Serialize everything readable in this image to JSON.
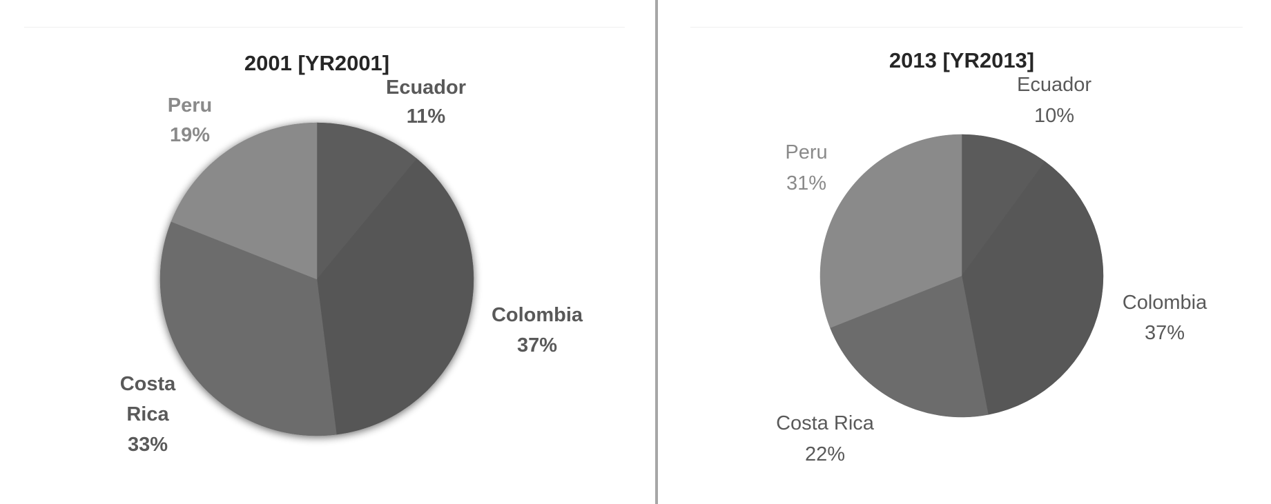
{
  "chart_data": [
    {
      "type": "pie",
      "title": "2001 [YR2001]",
      "categories": [
        "Ecuador",
        "Colombia",
        "Costa Rica",
        "Peru"
      ],
      "values": [
        11,
        37,
        33,
        19
      ],
      "labels": [
        "11%",
        "37%",
        "33%",
        "19%"
      ],
      "colors": [
        "#5b5b5b",
        "#575757",
        "#6c6c6c",
        "#8a8a8a"
      ],
      "label_color": [
        "#595959",
        "#595959",
        "#595959",
        "#8a8a8a"
      ],
      "bold_labels": true,
      "shadow": true
    },
    {
      "type": "pie",
      "title": "2013 [YR2013]",
      "categories": [
        "Ecuador",
        "Colombia",
        "Costa Rica",
        "Peru"
      ],
      "values": [
        10,
        37,
        22,
        31
      ],
      "labels": [
        "10%",
        "37%",
        "22%",
        "31%"
      ],
      "colors": [
        "#5b5b5b",
        "#575757",
        "#6c6c6c",
        "#8a8a8a"
      ],
      "label_color": [
        "#595959",
        "#595959",
        "#595959",
        "#8a8a8a"
      ],
      "bold_labels": false,
      "shadow": false
    }
  ]
}
